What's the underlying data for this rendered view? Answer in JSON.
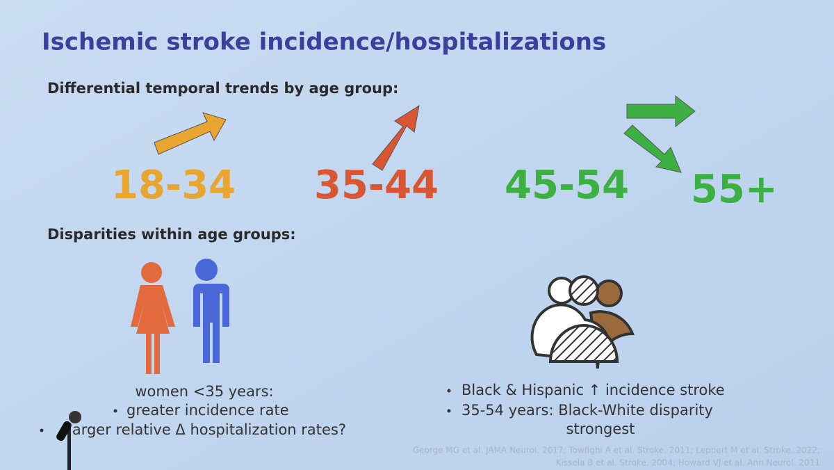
{
  "title": "Ischemic stroke incidence/hospitalizations",
  "trends": {
    "heading": "Differential temporal trends by age group:",
    "groups": [
      "18-34",
      "35-44",
      "45-54",
      "55+"
    ]
  },
  "disparities": {
    "heading": "Disparities within age groups:",
    "left": {
      "lead": "women <35 years:",
      "bullets": [
        "greater incidence rate",
        "larger relative Δ hospitalization rates?"
      ]
    },
    "right": {
      "bullets": [
        "Black & Hispanic ↑ incidence stroke",
        "35-54 years: Black-White disparity strongest"
      ]
    }
  },
  "citations": [
    "George MG et al. JAMA Neurol. 2017; Towfighi A et al. Stroke. 2011; Leppert M et al. Stroke. 2022;",
    "Kissela B et al. Stroke. 2004; Howard VJ et al. Ann Neurol. 2011"
  ]
}
